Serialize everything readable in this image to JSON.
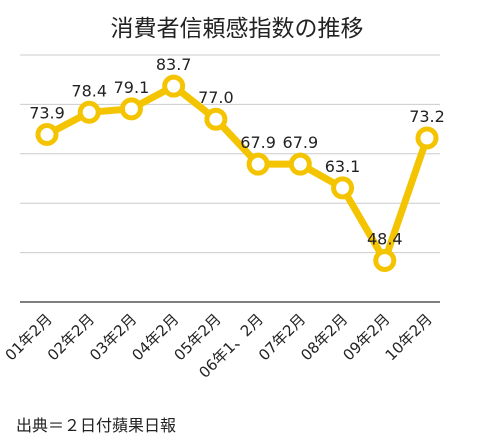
{
  "chart_data": {
    "type": "line",
    "title": "消費者信頼感指数の推移",
    "categories": [
      "01年2月",
      "02年2月",
      "03年2月",
      "04年2月",
      "05年2月",
      "06年1、2月",
      "07年2月",
      "08年2月",
      "09年2月",
      "10年2月"
    ],
    "values": [
      73.9,
      78.4,
      79.1,
      83.7,
      77.0,
      67.9,
      67.9,
      63.1,
      48.4,
      73.2
    ],
    "value_labels": [
      "73.9",
      "78.4",
      "79.1",
      "83.7",
      "77.0",
      "67.9",
      "67.9",
      "63.1",
      "48.4",
      "73.2"
    ],
    "ylim": [
      40,
      90
    ],
    "grid": true,
    "line_color": "#F5C400",
    "marker_fill": "#FFFFFF"
  },
  "source": "出典＝２日付蘋果日報"
}
